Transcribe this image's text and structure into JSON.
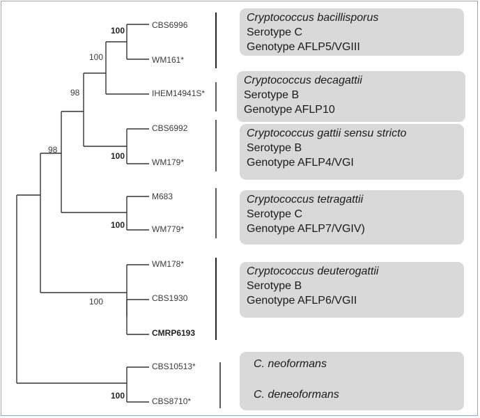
{
  "tree": {
    "leaves": [
      {
        "id": "CBS6996",
        "label": "CBS6996",
        "bold": false
      },
      {
        "id": "WM161",
        "label": "WM161*",
        "bold": false
      },
      {
        "id": "IHEM14941S",
        "label": "IHEM14941S*",
        "bold": false
      },
      {
        "id": "CBS6992",
        "label": "CBS6992",
        "bold": false
      },
      {
        "id": "WM179",
        "label": "WM179*",
        "bold": false
      },
      {
        "id": "M683",
        "label": "M683",
        "bold": false
      },
      {
        "id": "WM779",
        "label": "WM779*",
        "bold": false
      },
      {
        "id": "WM178",
        "label": "WM178*",
        "bold": false
      },
      {
        "id": "CBS1930",
        "label": "CBS1930",
        "bold": false
      },
      {
        "id": "CMRP6193",
        "label": "CMRP6193",
        "bold": true
      },
      {
        "id": "CBS10513",
        "label": "CBS10513*",
        "bold": false
      },
      {
        "id": "CBS8710",
        "label": "CBS8710*",
        "bold": false
      }
    ],
    "support_values": [
      {
        "node": "bacillisporus-pair",
        "value": "100",
        "bold": true
      },
      {
        "node": "bacillisporus-decagattii",
        "value": "100",
        "bold": false
      },
      {
        "node": "gattii-group-inner",
        "value": "98",
        "bold": false
      },
      {
        "node": "gattii-group-outer",
        "value": "98",
        "bold": false
      },
      {
        "node": "gattii-pair",
        "value": "100",
        "bold": true
      },
      {
        "node": "tetragattii-pair",
        "value": "100",
        "bold": true
      },
      {
        "node": "deuterogattii-clade",
        "value": "100",
        "bold": false
      },
      {
        "node": "neoformans-pair",
        "value": "100",
        "bold": true
      }
    ]
  },
  "clades": [
    {
      "species": "Cryptococcus bacillisporus",
      "serotype": "Serotype C",
      "genotype": "Genotype AFLP5/VGIII"
    },
    {
      "species": "Cryptococcus decagattii",
      "serotype": "Serotype B",
      "genotype": "Genotype AFLP10"
    },
    {
      "species": "Cryptococcus gattii sensu stricto",
      "serotype": "Serotype B",
      "genotype": "Genotype AFLP4/VGI"
    },
    {
      "species": "Cryptococcus tetragattii",
      "serotype": "Serotype C",
      "genotype": "Genotype AFLP7/VGIV)"
    },
    {
      "species": "Cryptococcus deuterogattii",
      "serotype": "Serotype B",
      "genotype": "Genotype AFLP6/VGII"
    }
  ],
  "neoformans": {
    "name1": "C. neoformans",
    "name2": "C. deneoformans"
  },
  "colors": {
    "branch": "#333333",
    "box_fill": "#d9d9d9",
    "frame": "#8aa7c9"
  }
}
